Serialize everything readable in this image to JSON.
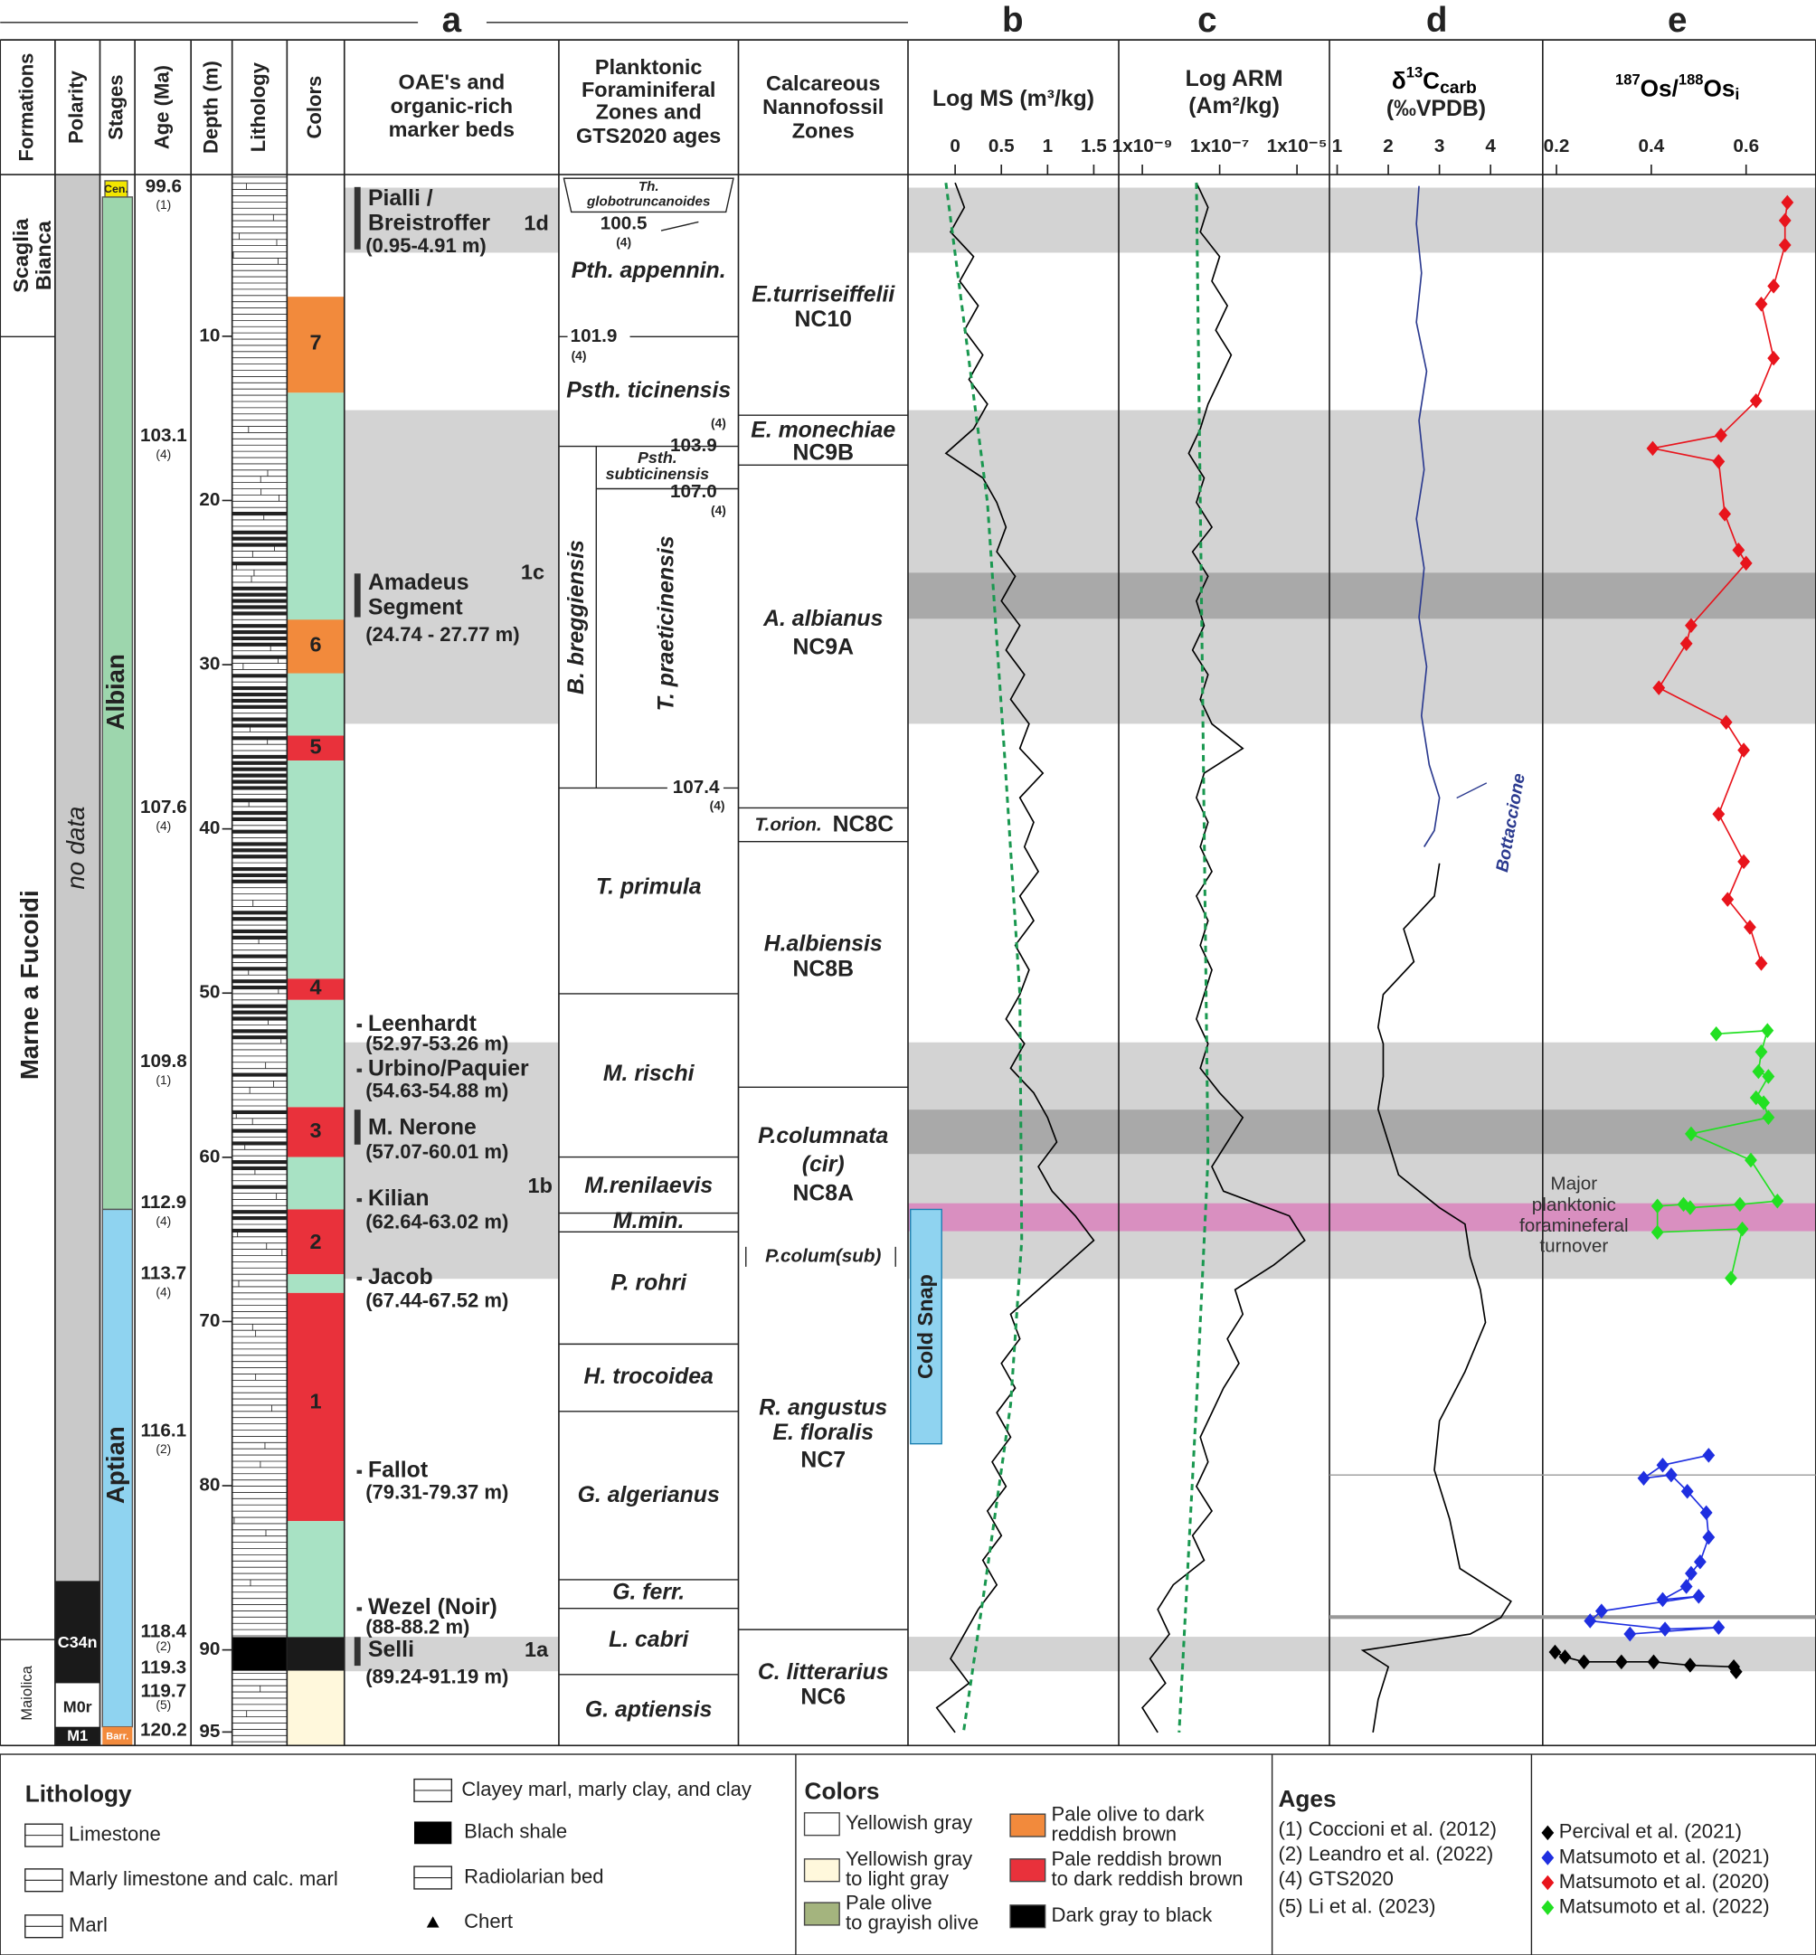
{
  "header": {
    "panels": [
      "a",
      "b",
      "c",
      "d",
      "e"
    ],
    "columns": [
      "Formations",
      "Polarity",
      "Stages",
      "Age (Ma)",
      "Depth (m)",
      "Lithology",
      "Colors"
    ],
    "oae": [
      "OAE's and",
      "organic-rich",
      "marker beds"
    ],
    "forams": [
      "Planktonic",
      "Foraminiferal",
      "Zones and",
      "GTS2020 ages"
    ],
    "nanno": [
      "Calcareous",
      "Nannofossil",
      "Zones"
    ]
  },
  "formations": [
    [
      "Scaglia",
      "Bianca"
    ],
    "Marne a Fucoidi",
    "Maiolica"
  ],
  "polarity": [
    "no data",
    "C34n",
    "M0r",
    "M1"
  ],
  "stages": [
    "Cen.",
    "Albian",
    "Aptian",
    "Barr."
  ],
  "ages": [
    {
      "age": 99.6,
      "ref": "(1)"
    },
    {
      "age": 103.1,
      "ref": "(4)"
    },
    {
      "age": 107.6,
      "ref": "(4)"
    },
    {
      "age": 109.8,
      "ref": "(1)"
    },
    {
      "age": 112.9,
      "ref": "(4)"
    },
    {
      "age": 113.7,
      "ref": "(4)"
    },
    {
      "age": 116.1,
      "ref": "(2)"
    },
    {
      "age": 118.4,
      "ref": "(2)"
    },
    {
      "age": 119.3
    },
    {
      "age": 119.7,
      "ref": "(5)"
    },
    {
      "age": 120.2
    }
  ],
  "depth_ticks": [
    10,
    20,
    30,
    40,
    50,
    60,
    70,
    80,
    90,
    95
  ],
  "color_beds": [
    "7",
    "6",
    "5",
    "4",
    "3",
    "2",
    "1"
  ],
  "oae": [
    {
      "name": [
        "Pialli /",
        "Breistroffer"
      ],
      "event": "1d",
      "range": "(0.95-4.91 m)"
    },
    {
      "name": [
        "Amadeus",
        "Segment"
      ],
      "event": "1c",
      "range": "(24.74 - 27.77 m)"
    },
    {
      "name": "Leenhardt",
      "range": "(52.97-53.26 m)"
    },
    {
      "name": "Urbino/Paquier",
      "range": "(54.63-54.88 m)"
    },
    {
      "name": "M. Nerone",
      "range": "(57.07-60.01 m)",
      "event": "1b"
    },
    {
      "name": "Kilian",
      "range": "(62.64-63.02 m)"
    },
    {
      "name": "Jacob",
      "range": "(67.44-67.52 m)"
    },
    {
      "name": "Fallot",
      "range": "(79.31-79.37 m)"
    },
    {
      "name": "Wezel (Noir)",
      "range": "(88-88.2 m)"
    },
    {
      "name": "Selli",
      "event": "1a",
      "range": "(89.24-91.19 m)"
    }
  ],
  "forams": {
    "zones": [
      [
        "Th.",
        "globotruncanoides"
      ],
      "Pth. appennin.",
      "Psth. ticinensis",
      [
        "Psth.",
        "subticinensis"
      ],
      "B. breggiensis",
      "T. praeticinensis",
      "T. primula",
      "M. rischi",
      "M.renilaevis",
      "M.min.",
      "P.colum(sub)",
      "P. rohri",
      "H. trocoidea",
      "G. algerianus",
      "G. ferr.",
      "L. cabri",
      "G. aptiensis"
    ],
    "ages": [
      {
        "age": 100.5,
        "ref": "(4)"
      },
      {
        "age": 101.9,
        "ref": "(4)"
      },
      {
        "age": 103.9,
        "ref": "(4)"
      },
      {
        "age": "107.0",
        "ref": "(4)"
      },
      {
        "age": 107.4,
        "ref": "(4)"
      }
    ]
  },
  "nanno": [
    [
      "E.turriseiffelii",
      "NC10"
    ],
    [
      "E. monechiae",
      "NC9B"
    ],
    [
      "A. albianus",
      "NC9A"
    ],
    [
      "T.orion.",
      "NC8C"
    ],
    [
      "H.albiensis",
      "NC8B"
    ],
    [
      "P.columnata",
      "(cir)",
      "NC8A"
    ],
    [
      "R. angustus",
      "E. floralis",
      "NC7"
    ],
    [
      "C. litterarius",
      "NC6"
    ]
  ],
  "bands": [
    {
      "top": 0.95,
      "bottom": 4.91,
      "color": "#d3d3d3"
    },
    {
      "top": 14.5,
      "bottom": 33.6,
      "color": "#d3d3d3"
    },
    {
      "top": 24.4,
      "bottom": 27.2,
      "color": "#a9a9a9"
    },
    {
      "top": 53,
      "bottom": 67.4,
      "color": "#d3d3d3"
    },
    {
      "top": 57.1,
      "bottom": 59.8,
      "color": "#a9a9a9"
    },
    {
      "top": 62.8,
      "bottom": 64.5,
      "color": "#d98fc0"
    },
    {
      "top": 89.2,
      "bottom": 91.3,
      "color": "#d3d3d3"
    }
  ],
  "chart_data": [
    {
      "type": "line",
      "title": "Log MS (m³/kg)",
      "xlim": [
        -0.51,
        1.77
      ],
      "xticks": [
        0,
        0.5,
        1,
        1.5
      ],
      "ylim": [
        0,
        95.8
      ],
      "annotation": "Cold Snap",
      "series": [
        {
          "color": "#000000",
          "depth": [
            0.5,
            2,
            3.5,
            5,
            6.5,
            8,
            9.5,
            11,
            12.5,
            14,
            15.5,
            17,
            18.5,
            20,
            21.5,
            23,
            24.5,
            26,
            27.5,
            29,
            30.5,
            32,
            33.5,
            35,
            36.5,
            38,
            39.5,
            41,
            42.5,
            44,
            45.5,
            47,
            48.5,
            50,
            51.5,
            53,
            54.5,
            56,
            57.5,
            59,
            60.5,
            62,
            63.5,
            65,
            66.5,
            68,
            69.5,
            71,
            72.5,
            74,
            75.5,
            77,
            78.5,
            80,
            81.5,
            83,
            84.5,
            86,
            87.5,
            89,
            90.5,
            92,
            93.5,
            95
          ],
          "values": [
            0.0,
            0.1,
            -0.05,
            0.2,
            0.05,
            0.25,
            0.1,
            0.3,
            0.15,
            0.35,
            0.2,
            -0.1,
            0.3,
            0.45,
            0.55,
            0.45,
            0.65,
            0.5,
            0.7,
            0.55,
            0.75,
            0.6,
            0.8,
            0.7,
            0.95,
            0.7,
            0.85,
            0.75,
            0.9,
            0.7,
            0.85,
            0.65,
            0.8,
            0.7,
            0.55,
            0.75,
            0.6,
            0.85,
            1.0,
            1.1,
            0.9,
            1.05,
            1.3,
            1.5,
            1.2,
            0.9,
            0.6,
            0.7,
            0.5,
            0.65,
            0.45,
            0.6,
            0.4,
            0.55,
            0.35,
            0.5,
            0.3,
            0.45,
            0.25,
            0.1,
            -0.05,
            0.15,
            -0.2,
            0.0
          ]
        },
        {
          "color": "#1a9850",
          "dashed": true,
          "depth": [
            0.5,
            20,
            35,
            50,
            65,
            75,
            85,
            95
          ],
          "values": [
            -0.1,
            0.35,
            0.53,
            0.7,
            0.72,
            0.6,
            0.35,
            0.09
          ]
        }
      ]
    },
    {
      "type": "line",
      "title": [
        "Log ARM",
        "(Am²/kg)"
      ],
      "xlim": [
        -9.61,
        -4.16
      ],
      "xticks": [
        {
          "value": -9,
          "label": "1x10⁻⁹"
        },
        {
          "value": -7,
          "label": "1x10⁻⁷"
        },
        {
          "value": -5,
          "label": "1x10⁻⁵"
        }
      ],
      "ylim": [
        0,
        95.8
      ],
      "series": [
        {
          "color": "#000000",
          "depth": [
            0.5,
            2,
            3.5,
            5,
            6.5,
            8,
            9.5,
            11,
            12.5,
            14,
            15.5,
            17,
            18.5,
            20,
            21.5,
            23,
            24.5,
            26,
            27.5,
            29,
            30.5,
            32,
            33.5,
            35,
            36.5,
            38,
            39.5,
            41,
            42.5,
            44,
            45.5,
            47,
            48.5,
            50,
            51.5,
            53,
            54.5,
            56,
            57.5,
            59,
            60.5,
            62,
            63.5,
            65,
            66.5,
            68,
            69.5,
            71,
            72.5,
            74,
            75.5,
            77,
            78.5,
            80,
            81.5,
            83,
            84.5,
            86,
            87.5,
            89,
            90.5,
            92,
            93.5,
            95
          ],
          "values": [
            -7.6,
            -7.3,
            -7.5,
            -7.0,
            -7.2,
            -6.8,
            -7.1,
            -6.7,
            -7.0,
            -7.3,
            -7.5,
            -7.8,
            -7.4,
            -7.6,
            -7.2,
            -7.7,
            -7.3,
            -7.6,
            -7.4,
            -7.7,
            -7.3,
            -7.5,
            -7.2,
            -6.4,
            -7.4,
            -7.6,
            -7.3,
            -7.5,
            -7.2,
            -7.6,
            -7.3,
            -7.5,
            -7.2,
            -7.4,
            -7.6,
            -7.3,
            -7.5,
            -7.0,
            -6.4,
            -6.8,
            -7.2,
            -6.9,
            -5.2,
            -4.8,
            -5.6,
            -6.6,
            -6.4,
            -6.8,
            -6.5,
            -6.9,
            -7.2,
            -7.5,
            -7.3,
            -7.6,
            -7.2,
            -7.7,
            -7.4,
            -8.2,
            -8.6,
            -8.3,
            -8.8,
            -8.4,
            -9.0,
            -8.6
          ]
        },
        {
          "color": "#1a9850",
          "dashed": true,
          "depth": [
            0.5,
            30,
            60,
            75,
            95
          ],
          "values": [
            -7.6,
            -7.45,
            -7.3,
            -7.6,
            -8.05
          ]
        }
      ]
    },
    {
      "type": "line",
      "title_parts": [
        "δ",
        "13",
        "C",
        "carb"
      ],
      "unit": "(‰VPDB)",
      "xlim": [
        0.85,
        5.02
      ],
      "xticks": [
        1,
        2,
        3,
        4
      ],
      "ylim": [
        0,
        95.8
      ],
      "annotation": [
        "Major",
        "planktonic",
        "foramineferal",
        "turnover"
      ],
      "series": [
        {
          "name": "Bottaccione",
          "color": "#2b3a8f",
          "depth": [
            0.7,
            3,
            6,
            9,
            12,
            15,
            18,
            21,
            24,
            27,
            30,
            33,
            36,
            38,
            40,
            41
          ],
          "values": [
            2.6,
            2.55,
            2.65,
            2.55,
            2.75,
            2.6,
            2.7,
            2.55,
            2.7,
            2.6,
            2.75,
            2.65,
            2.8,
            3.0,
            2.9,
            2.7
          ]
        },
        {
          "color": "#000000",
          "depth": [
            42,
            44,
            46,
            48,
            50,
            52,
            53,
            55,
            57,
            59,
            61,
            63,
            64,
            66,
            68,
            70,
            73,
            76,
            79,
            82,
            85,
            87,
            88,
            89,
            90,
            91,
            93,
            95
          ],
          "values": [
            3.0,
            2.9,
            2.3,
            2.5,
            1.9,
            1.8,
            1.9,
            1.9,
            1.8,
            2.0,
            2.2,
            3.0,
            3.5,
            3.6,
            3.8,
            3.9,
            3.5,
            3.0,
            2.9,
            3.2,
            3.4,
            4.4,
            4.2,
            3.6,
            1.5,
            2.0,
            1.8,
            1.7
          ]
        }
      ]
    },
    {
      "type": "line",
      "markers": "diamond",
      "title_parts": [
        "187",
        "Os/",
        "188",
        "Os",
        "i"
      ],
      "xlim": [
        0.171,
        0.747
      ],
      "xticks": [
        0.2,
        0.4,
        0.6
      ],
      "ylim": [
        0,
        95.8
      ],
      "series": [
        {
          "name": "Percival et al. (2021)",
          "color": "#000000",
          "depth": [
            90.1,
            90.4,
            90.7,
            90.7,
            90.7,
            90.9,
            91.0,
            91.3
          ],
          "values": [
            0.197,
            0.218,
            0.258,
            0.337,
            0.405,
            0.482,
            0.574,
            0.579
          ]
        },
        {
          "name": "Matsumoto et al. (2021)",
          "color": "#1f2fe0",
          "depth": [
            78.1,
            78.7,
            79.5,
            79.3,
            80.3,
            81.6,
            83.1,
            84.6,
            85.3,
            86.1,
            86.9,
            86.7,
            87.6,
            88.2,
            88.7,
            88.6,
            89.0
          ],
          "values": [
            0.521,
            0.424,
            0.384,
            0.442,
            0.476,
            0.516,
            0.521,
            0.503,
            0.484,
            0.474,
            0.424,
            0.5,
            0.295,
            0.271,
            0.429,
            0.542,
            0.355
          ]
        },
        {
          "name": "Matsumoto et al. (2020)",
          "color": "#e8141c",
          "depth": [
            1.7,
            2.8,
            4.3,
            6.8,
            7.9,
            11.2,
            13.8,
            15.9,
            16.7,
            17.5,
            20.7,
            22.9,
            23.7,
            27.5,
            28.6,
            31.3,
            33.4,
            35.1,
            39.0,
            41.9,
            44.2,
            45.9,
            48.1
          ],
          "values": [
            0.687,
            0.682,
            0.682,
            0.658,
            0.632,
            0.658,
            0.621,
            0.547,
            0.403,
            0.542,
            0.555,
            0.584,
            0.6,
            0.484,
            0.474,
            0.416,
            0.558,
            0.595,
            0.542,
            0.595,
            0.561,
            0.608,
            0.632
          ]
        },
        {
          "name": "Matsumoto et al. (2022)",
          "color": "#22e022",
          "depth": [
            52.4,
            52.2,
            53.5,
            54.7,
            55.0,
            56.3,
            56.6,
            57.5,
            58.5,
            60.1,
            62.6,
            62.8,
            63.0,
            62.8,
            62.9,
            64.5,
            64.3,
            67.3
          ],
          "values": [
            0.537,
            0.645,
            0.632,
            0.626,
            0.647,
            0.621,
            0.637,
            0.647,
            0.484,
            0.61,
            0.666,
            0.587,
            0.482,
            0.468,
            0.413,
            0.413,
            0.592,
            0.568
          ]
        }
      ]
    }
  ],
  "legend": {
    "lithology_title": "Lithology",
    "lithology": [
      "Limestone",
      "Marly limestone and calc. marl",
      "Marl",
      "Clayey marl, marly clay, and clay",
      "Blach shale",
      "Radiolarian bed",
      "Chert"
    ],
    "colors_title": "Colors",
    "colors": [
      {
        "label": [
          "Yellowish gray"
        ],
        "color": "#ffffff"
      },
      {
        "label": [
          "Yellowish gray",
          "to light gray"
        ],
        "color": "#fff8dc"
      },
      {
        "label": [
          "Pale olive",
          "to grayish olive"
        ],
        "color": "#a4b47e"
      },
      {
        "label": [
          "Pale olive to dark",
          "reddish brown"
        ],
        "color": "#f28a3c"
      },
      {
        "label": [
          "Pale reddish brown",
          "to dark reddish brown"
        ],
        "color": "#e9313b"
      },
      {
        "label": [
          "Dark gray to black"
        ],
        "color": "#000000"
      }
    ],
    "ages_title": "Ages",
    "ages": [
      "(1) Coccioni et al. (2012)",
      "(2) Leandro et al. (2022)",
      "(4) GTS2020",
      "(5) Li et al. (2023)"
    ]
  }
}
